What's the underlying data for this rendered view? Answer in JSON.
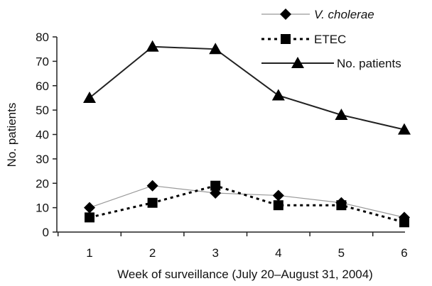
{
  "chart_data": {
    "type": "line",
    "xlabel": "Week of surveillance (July 20–August 31, 2004)",
    "ylabel": "No. patients",
    "x": [
      1,
      2,
      3,
      4,
      5,
      6
    ],
    "ylim": [
      0,
      80
    ],
    "yticks": [
      0,
      10,
      20,
      30,
      40,
      50,
      60,
      70,
      80
    ],
    "xtick_labels": [
      "1",
      "2",
      "3",
      "4",
      "5",
      "6"
    ],
    "ytick_labels": [
      "0",
      "10",
      "20",
      "30",
      "40",
      "50",
      "60",
      "70",
      "80"
    ],
    "grid": false,
    "legend_position": "top-right",
    "series": [
      {
        "name": "V. cholerae",
        "marker": "diamond",
        "line": "solid-thin",
        "color": "#999999",
        "values": [
          10,
          19,
          16,
          15,
          12,
          6
        ]
      },
      {
        "name": "ETEC",
        "marker": "square",
        "line": "dotted",
        "color": "#000000",
        "values": [
          6,
          12,
          19,
          11,
          11,
          4
        ]
      },
      {
        "name": "No. patients",
        "marker": "triangle",
        "line": "solid-thick",
        "color": "#222222",
        "values": [
          55,
          76,
          75,
          56,
          48,
          42
        ]
      }
    ]
  }
}
